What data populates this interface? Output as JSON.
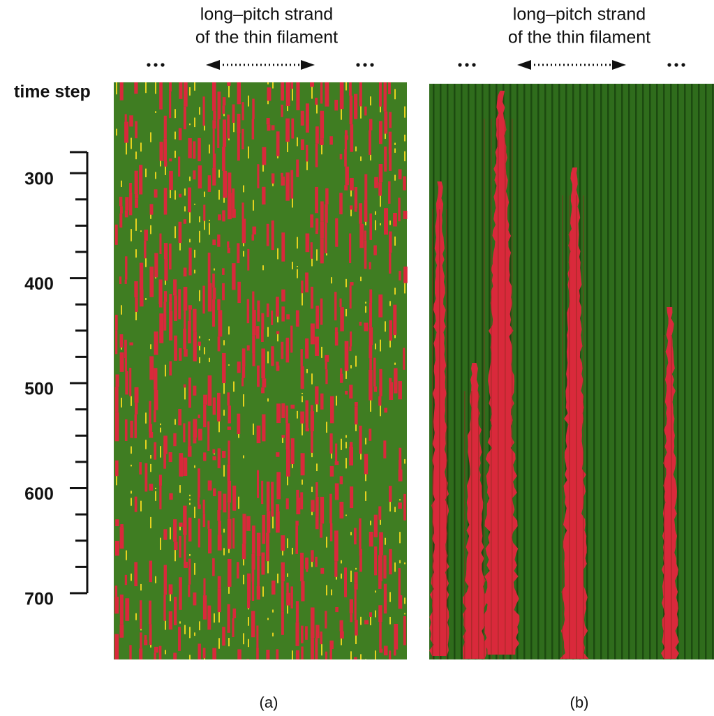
{
  "panels": [
    {
      "header": [
        "long–pitch strand",
        "of the thin filament"
      ],
      "label": "(a)"
    },
    {
      "header": [
        "long–pitch strand",
        "of the thin filament"
      ],
      "label": "(b)"
    }
  ],
  "time_axis": {
    "label": "time step",
    "lim": [
      280,
      700
    ],
    "ticks": [
      300,
      400,
      500,
      600,
      700
    ],
    "minor_ticks": [
      325,
      350,
      375,
      425,
      450,
      475,
      525,
      550,
      575,
      625,
      650,
      675
    ]
  }
}
